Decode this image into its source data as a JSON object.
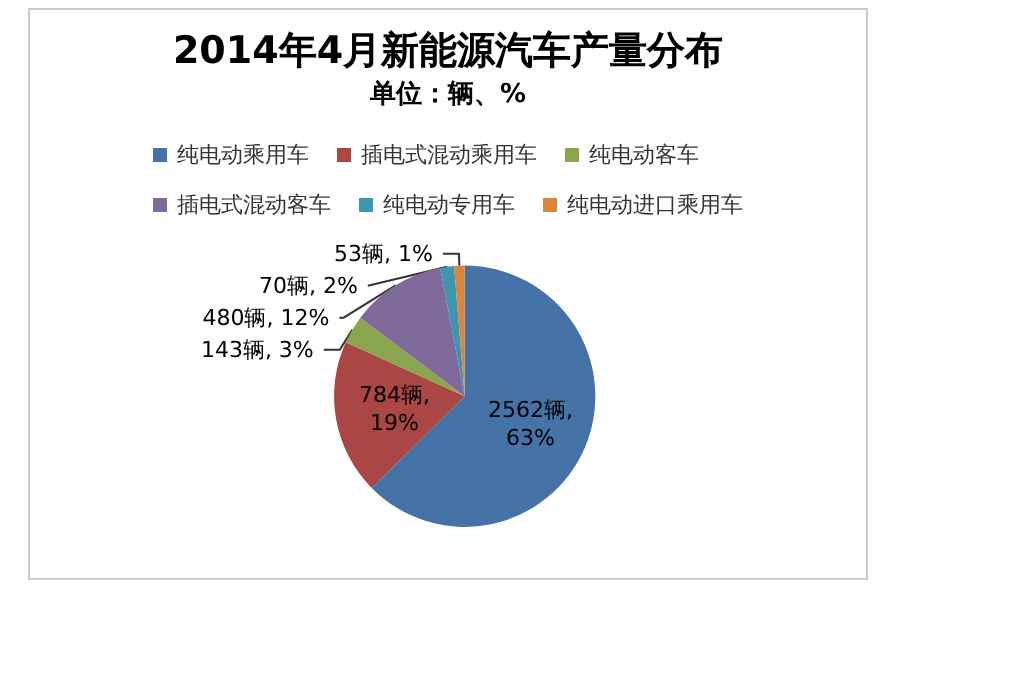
{
  "chart_data": {
    "type": "pie",
    "title": "2014年4月新能源汽车产量分布",
    "subtitle": "单位：辆、%",
    "categories": [
      "纯电动乘用车",
      "插电式混动乘用车",
      "纯电动客车",
      "插电式混动客车",
      "纯电动专用车",
      "纯电动进口乘用车"
    ],
    "values": [
      2562,
      784,
      143,
      480,
      70,
      53
    ],
    "colors": [
      "#4572a7",
      "#aa4643",
      "#89a54e",
      "#80699b",
      "#3d96ae",
      "#db843d"
    ],
    "value_labels": [
      "2562辆,\n63%",
      "784辆,\n19%",
      "143辆, 3%",
      "480辆, 12%",
      "70辆, 2%",
      "53辆, 1%"
    ],
    "legend": "top"
  }
}
